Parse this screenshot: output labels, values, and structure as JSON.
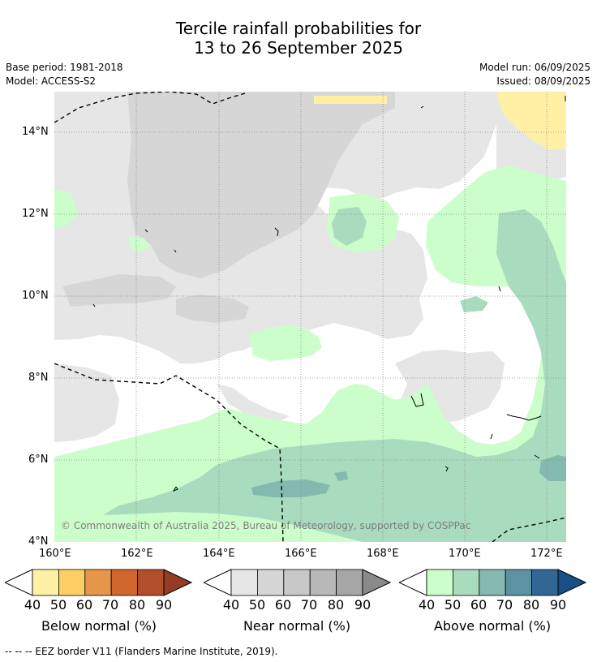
{
  "title": {
    "line1": "Tercile rainfall probabilities for",
    "line2": "13 to 26 September 2025"
  },
  "meta": {
    "base_period": "Base period: 1981-2018",
    "model": "Model: ACCESS-S2",
    "model_run": "Model run: 06/09/2025",
    "issued": "Issued: 08/09/2025"
  },
  "map": {
    "lat_labels": [
      "14°N",
      "12°N",
      "10°N",
      "8°N",
      "6°N",
      "4°N"
    ],
    "lon_labels": [
      "160°E",
      "162°E",
      "164°E",
      "166°E",
      "168°E",
      "170°E",
      "172°E"
    ],
    "copyright": "© Commonwealth of Australia 2025, Bureau of Meteorology, supported by COSPPac"
  },
  "legends": {
    "below": {
      "label": "Below normal (%)",
      "ticks": [
        "40",
        "50",
        "60",
        "70",
        "80",
        "90"
      ],
      "colors": [
        "#fff0a6",
        "#fdcf65",
        "#e5964a",
        "#d2672e",
        "#b24e2a",
        "#943d22"
      ]
    },
    "near": {
      "label": "Near normal (%)",
      "ticks": [
        "40",
        "50",
        "60",
        "70",
        "80",
        "90"
      ],
      "colors": [
        "#e6e6e6",
        "#d6d6d6",
        "#c8c8c8",
        "#b8b8b8",
        "#a6a6a6",
        "#8a8a8a"
      ]
    },
    "above": {
      "label": "Above normal (%)",
      "ticks": [
        "40",
        "50",
        "60",
        "70",
        "80",
        "90"
      ],
      "colors": [
        "#ccfecb",
        "#a9dcbe",
        "#84b9b0",
        "#5b93a2",
        "#326795",
        "#174f86"
      ]
    }
  },
  "footnote": "-- -- -- EEZ border V11 (Flanders Marine Institute, 2019)."
}
